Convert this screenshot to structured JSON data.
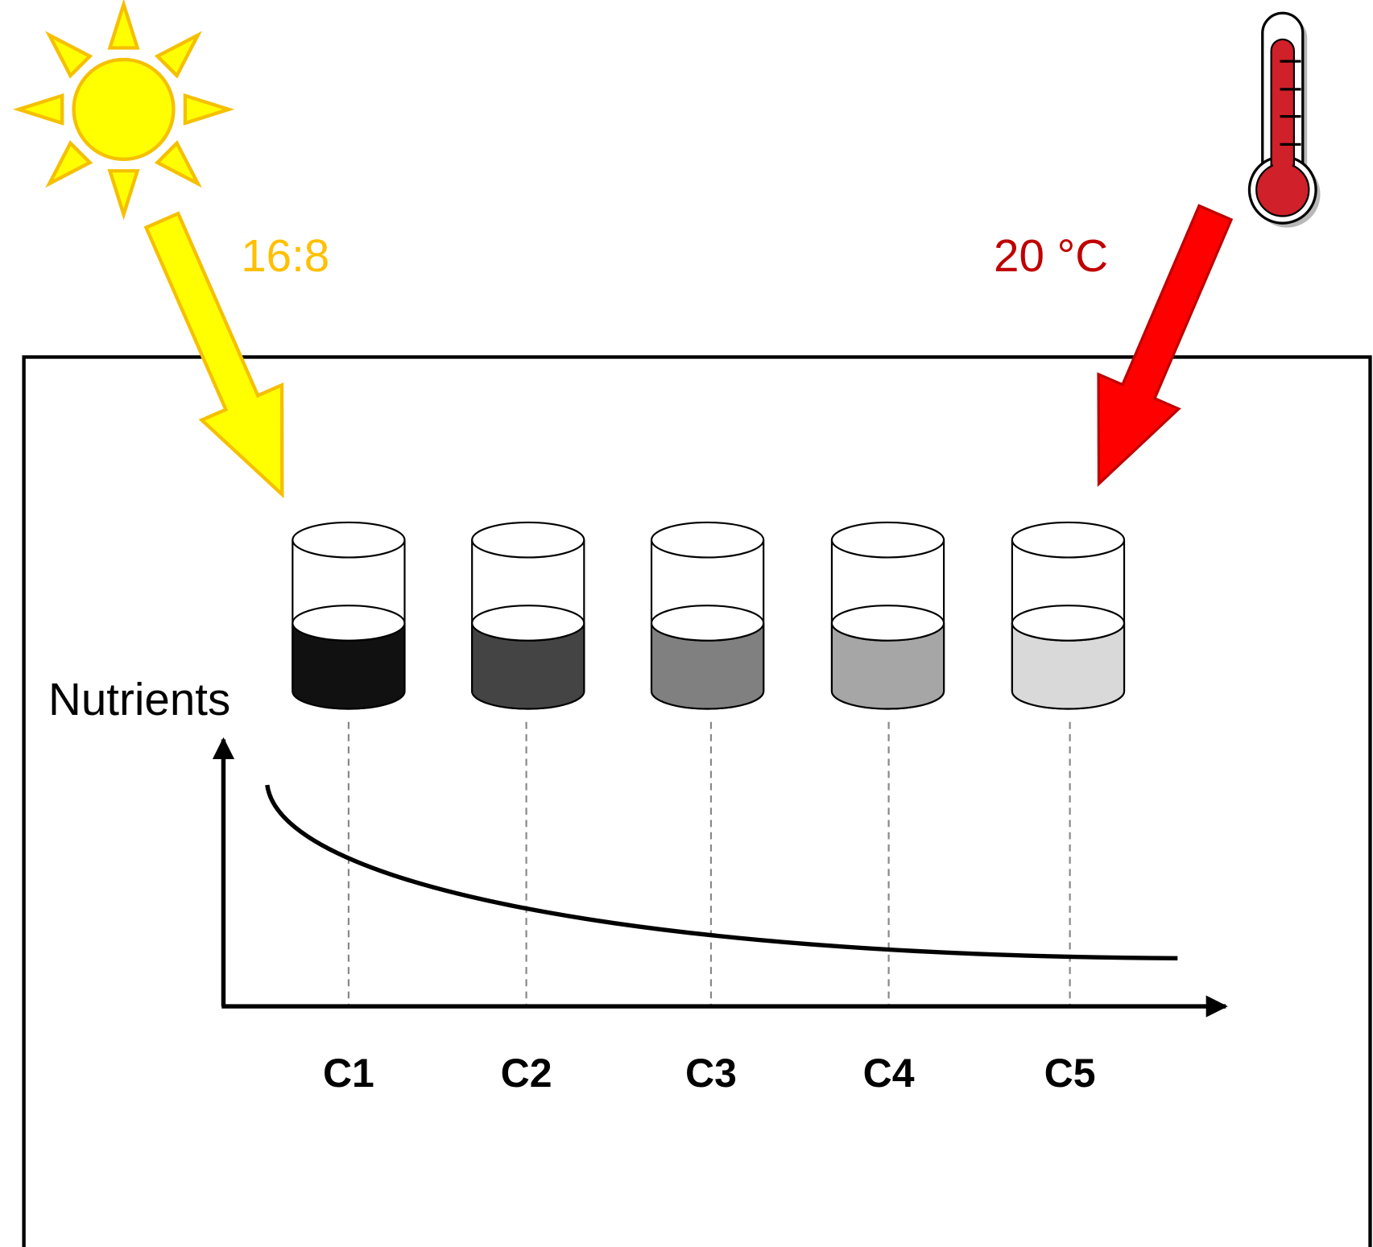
{
  "light": {
    "label": "16:8",
    "color": "#ffc000"
  },
  "temperature": {
    "label": "20 °C",
    "color": "#c00000"
  },
  "y_axis": {
    "label": "Nutrients"
  },
  "containers": [
    {
      "label": "C1",
      "fill": "#111111"
    },
    {
      "label": "C2",
      "fill": "#444444"
    },
    {
      "label": "C3",
      "fill": "#808080"
    },
    {
      "label": "C4",
      "fill": "#a6a6a6"
    },
    {
      "label": "C5",
      "fill": "#d9d9d9"
    }
  ]
}
